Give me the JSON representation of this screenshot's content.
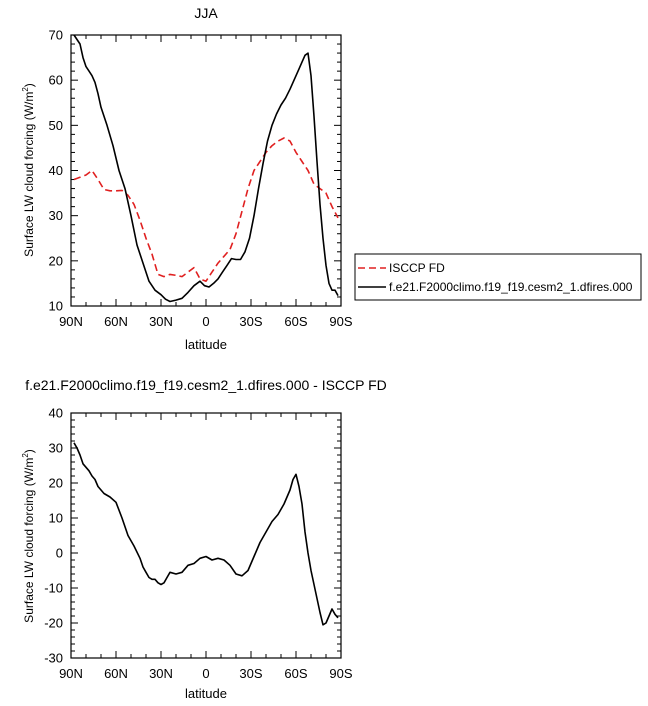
{
  "chart_data": [
    {
      "type": "line",
      "title": "JJA",
      "xlabel": "latitude",
      "ylabel": "Surface LW cloud forcing (W/m",
      "ylabel_sup": "2",
      "ylabel_end": ")",
      "xlim": [
        -90,
        90
      ],
      "ylim": [
        10,
        70
      ],
      "x_ticks": [
        -90,
        -60,
        -30,
        0,
        30,
        60,
        90
      ],
      "x_tick_labels": [
        "90N",
        "60N",
        "30N",
        "0",
        "30S",
        "60S",
        "90S"
      ],
      "y_ticks": [
        10,
        20,
        30,
        40,
        50,
        60,
        70
      ],
      "y_tick_labels": [
        "10",
        "20",
        "30",
        "40",
        "50",
        "60",
        "70"
      ],
      "grid": false,
      "legend_position": "right",
      "series": [
        {
          "name": "ISCCP FD",
          "color": "#e02020",
          "style": "dashed",
          "x": [
            -88,
            -84,
            -80,
            -76,
            -72,
            -68,
            -64,
            -60,
            -56,
            -52,
            -48,
            -44,
            -40,
            -36,
            -32,
            -28,
            -24,
            -20,
            -16,
            -12,
            -8,
            -4,
            0,
            4,
            8,
            12,
            16,
            20,
            24,
            28,
            32,
            36,
            40,
            44,
            48,
            52,
            56,
            60,
            64,
            68,
            72,
            76,
            80,
            84,
            88
          ],
          "values": [
            38,
            38.5,
            39,
            40,
            38,
            35.8,
            35.5,
            35.5,
            35.6,
            34.5,
            32.5,
            29,
            25,
            21.5,
            17,
            16.5,
            17,
            16.8,
            16.5,
            17.5,
            18.5,
            16,
            15.5,
            17.5,
            19.5,
            21,
            22.5,
            26,
            31,
            36,
            40,
            42,
            44,
            45.5,
            46.5,
            47.2,
            46.5,
            44,
            42,
            40,
            37,
            36,
            35,
            32,
            29.5
          ]
        },
        {
          "name": "f.e21.F2000climo.f19_f19.cesm2_1.dfires.000",
          "color": "#000000",
          "style": "solid",
          "x": [
            -88,
            -86,
            -84,
            -82,
            -80,
            -78,
            -76,
            -74,
            -72,
            -70,
            -66,
            -62,
            -58,
            -54,
            -50,
            -46,
            -42,
            -38,
            -34,
            -30,
            -27,
            -24,
            -20,
            -16,
            -12,
            -8,
            -4,
            -1,
            2,
            5,
            8,
            11,
            14,
            17,
            20,
            23,
            26,
            29,
            32,
            35,
            38,
            41,
            44,
            47,
            50,
            53,
            56,
            58,
            60,
            62,
            64,
            66,
            68,
            70,
            72,
            74,
            76,
            78,
            80,
            82,
            84,
            86,
            88
          ],
          "values": [
            70,
            69,
            68,
            65,
            63,
            62,
            61,
            59.5,
            57,
            54,
            50,
            45.5,
            40,
            36,
            30,
            23.5,
            19.5,
            15.5,
            13.5,
            12.5,
            11.5,
            11,
            11.3,
            11.7,
            13,
            14.5,
            15.5,
            14.5,
            14.2,
            15,
            16,
            17.5,
            19,
            20.5,
            20.3,
            20.3,
            22,
            25,
            30,
            36,
            41.5,
            46.5,
            50,
            52.5,
            54.5,
            56,
            58,
            59.5,
            61,
            62.5,
            64,
            65.5,
            66,
            61,
            52,
            42,
            32.5,
            25,
            19,
            15,
            13.5,
            13.5,
            12.3
          ]
        }
      ]
    },
    {
      "type": "line",
      "title": "f.e21.F2000climo.f19_f19.cesm2_1.dfires.000 - ISCCP FD",
      "xlabel": "latitude",
      "ylabel": "Surface LW cloud forcing (W/m",
      "ylabel_sup": "2",
      "ylabel_end": ")",
      "xlim": [
        -90,
        90
      ],
      "ylim": [
        -30,
        40
      ],
      "x_ticks": [
        -90,
        -60,
        -30,
        0,
        30,
        60,
        90
      ],
      "x_tick_labels": [
        "90N",
        "60N",
        "30N",
        "0",
        "30S",
        "60S",
        "90S"
      ],
      "y_ticks": [
        -30,
        -20,
        -10,
        0,
        10,
        20,
        30,
        40
      ],
      "y_tick_labels": [
        "-30",
        "-20",
        "-10",
        "0",
        "10",
        "20",
        "30",
        "40"
      ],
      "grid": false,
      "series": [
        {
          "color": "#000000",
          "style": "solid",
          "x": [
            -88,
            -86,
            -84,
            -82,
            -80,
            -78,
            -76,
            -74,
            -72,
            -68,
            -64,
            -60,
            -56,
            -52,
            -48,
            -44,
            -42,
            -40,
            -38,
            -36,
            -34,
            -32,
            -30,
            -28,
            -26,
            -24,
            -20,
            -16,
            -12,
            -8,
            -4,
            0,
            4,
            8,
            12,
            16,
            20,
            24,
            28,
            32,
            36,
            40,
            44,
            48,
            52,
            56,
            58,
            60,
            62,
            64,
            66,
            68,
            70,
            72,
            74,
            76,
            78,
            80,
            82,
            84,
            86,
            88
          ],
          "values": [
            31.5,
            30,
            28,
            25.5,
            24.5,
            23.5,
            22,
            21,
            19,
            17,
            16,
            14.5,
            10,
            5,
            2,
            -1.5,
            -4,
            -5.5,
            -7,
            -7.5,
            -7.5,
            -8.5,
            -9,
            -8.5,
            -7,
            -5.5,
            -6,
            -5.5,
            -3.5,
            -3,
            -1.5,
            -1,
            -2,
            -1.5,
            -2,
            -3.5,
            -6,
            -6.5,
            -5,
            -1,
            3,
            6,
            9,
            11,
            14,
            18,
            21,
            22.5,
            19,
            14,
            6,
            0,
            -5,
            -9,
            -13,
            -17,
            -20.5,
            -20,
            -18,
            -16,
            -17.5,
            -18.5
          ]
        }
      ]
    }
  ]
}
